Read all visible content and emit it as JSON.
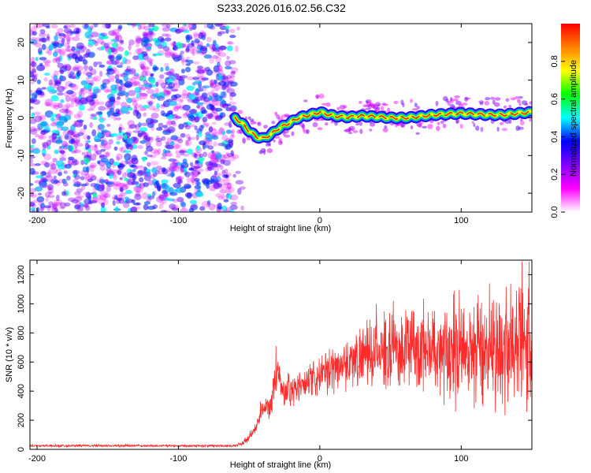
{
  "title": "S233.2026.016.02.56.C32",
  "chart_data": [
    {
      "type": "heatmap",
      "xlabel": "Height of straight line (km)",
      "ylabel": "Frequency (Hz)",
      "xlim": [
        -205,
        150
      ],
      "ylim": [
        -25,
        25
      ],
      "xticks": [
        -200,
        -100,
        0,
        100
      ],
      "yticks": [
        -20,
        -10,
        0,
        10,
        20
      ],
      "colorbar": {
        "label": "Normalized spectral amplitude",
        "range": [
          0,
          1
        ],
        "ticks": [
          "0.0",
          "0.2",
          "0.4",
          "0.6",
          "0.8"
        ],
        "tick_values": [
          0,
          0.2,
          0.4,
          0.6,
          0.8
        ],
        "colors": [
          "#ffffff",
          "#ff00ff",
          "#8000ff",
          "#0000ff",
          "#00ffff",
          "#00ff00",
          "#ffff00",
          "#ff8000",
          "#ff0000"
        ]
      },
      "noise_region": {
        "x": [
          -205,
          -60
        ],
        "y": [
          -25,
          25
        ]
      },
      "signal_ridge": {
        "x": [
          -60,
          -55,
          -50,
          -45,
          -40,
          -35,
          -30,
          -25,
          -20,
          -15,
          -10,
          -5,
          0,
          5,
          10,
          20,
          30,
          40,
          50,
          60,
          70,
          80,
          90,
          100,
          110,
          120,
          130,
          140,
          150
        ],
        "y": [
          0,
          -1.5,
          -3.5,
          -5,
          -5.5,
          -4.5,
          -3,
          -2,
          -1,
          0,
          0.5,
          1,
          1.5,
          1,
          0.5,
          0.2,
          0.5,
          0.3,
          0,
          0,
          0.3,
          0.8,
          1,
          1.2,
          1,
          0.8,
          0.8,
          1.2,
          1.5
        ]
      }
    },
    {
      "type": "line",
      "xlabel": "Height of straight line (km)",
      "ylabel": "SNR (10 * v/v)",
      "xlim": [
        -205,
        150
      ],
      "ylim": [
        0,
        1300
      ],
      "xticks": [
        -200,
        -100,
        0,
        100
      ],
      "yticks": [
        0,
        200,
        400,
        600,
        800,
        1000,
        1200
      ],
      "color": "#ff2a2a",
      "series": [
        {
          "name": "SNR",
          "x": [
            -205,
            -60,
            -55,
            -50,
            -45,
            -40,
            -35,
            -30,
            -25,
            -22,
            -20,
            -15,
            -10,
            -5,
            0,
            5,
            10,
            20,
            30,
            40,
            50,
            60,
            70,
            80,
            90,
            100,
            110,
            120,
            130,
            140,
            150
          ],
          "y": [
            25,
            25,
            40,
            80,
            150,
            280,
            300,
            520,
            380,
            450,
            380,
            430,
            440,
            480,
            500,
            520,
            560,
            600,
            640,
            660,
            680,
            690,
            700,
            700,
            690,
            680,
            690,
            700,
            700,
            690,
            700
          ],
          "spread": [
            10,
            10,
            20,
            40,
            60,
            80,
            100,
            150,
            120,
            150,
            150,
            150,
            150,
            160,
            170,
            180,
            200,
            220,
            250,
            280,
            300,
            340,
            360,
            400,
            420,
            450,
            480,
            500,
            520,
            540,
            560
          ],
          "peaks": [
            [
              -31,
              710
            ],
            [
              -42,
              330
            ],
            [
              -37,
              340
            ],
            [
              -5,
              450
            ],
            [
              40,
              1000
            ],
            [
              52,
              1020
            ],
            [
              95,
              1090
            ],
            [
              112,
              1060
            ],
            [
              120,
              1140
            ],
            [
              125,
              1010
            ],
            [
              143,
              1290
            ],
            [
              148,
              1290
            ],
            [
              65,
              950
            ]
          ]
        }
      ]
    }
  ]
}
